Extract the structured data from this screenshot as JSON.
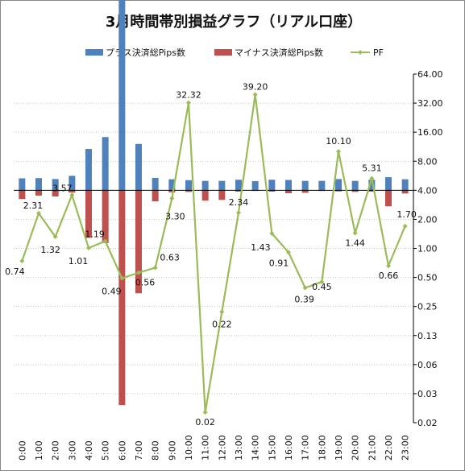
{
  "chart_data": {
    "type": "bar",
    "title": "3月時間帯別損益グラフ（リアル口座）",
    "categories": [
      "0:00",
      "1:00",
      "2:00",
      "3:00",
      "4:00",
      "5:00",
      "6:00",
      "7:00",
      "8:00",
      "9:00",
      "10:00",
      "11:00",
      "12:00",
      "13:00",
      "14:00",
      "15:00",
      "16:00",
      "17:00",
      "18:00",
      "19:00",
      "20:00",
      "21:00",
      "22:00",
      "23:00"
    ],
    "series": [
      {
        "name": "プラス決済総Pips数",
        "type": "bar",
        "color": "#4f81bd",
        "values": [
          5.2,
          5.3,
          4.9,
          6.3,
          18,
          23.2,
          94,
          20.2,
          5.4,
          4.8,
          4.4,
          4.1,
          4.1,
          4.6,
          4.0,
          4.6,
          4.5,
          4.1,
          4.1,
          4.9,
          4.1,
          4.6,
          5.7,
          4.8
        ]
      },
      {
        "name": "マイナス決済総Pips数",
        "type": "bar",
        "color": "#c0504d",
        "values": [
          -3.8,
          -2.3,
          -2.7,
          -1.0,
          -20.7,
          -23.0,
          -93.6,
          -44.9,
          -4.8,
          -0.9,
          -0.7,
          -4.5,
          -4.2,
          -0.6,
          -0.3,
          -0.6,
          -1.3,
          -1.1,
          -0.3,
          -0.5,
          -0.7,
          -0.6,
          -7.0,
          -1.4
        ]
      },
      {
        "name": "PF",
        "type": "line",
        "color": "#9bbb59",
        "values": [
          0.74,
          2.31,
          1.32,
          3.57,
          1.01,
          1.19,
          0.49,
          0.56,
          0.63,
          3.3,
          32.32,
          0.02,
          0.22,
          2.34,
          39.2,
          1.43,
          0.91,
          0.39,
          0.45,
          10.1,
          1.44,
          5.31,
          0.66,
          1.7
        ]
      }
    ],
    "y_right": {
      "scale": "log2",
      "ticks": [
        "0.02",
        "0.03",
        "0.06",
        "0.13",
        "0.25",
        "0.50",
        "1.00",
        "2.00",
        "4.00",
        "8.00",
        "16.00",
        "32.00",
        "64.00"
      ]
    },
    "grid": true,
    "legend": "top"
  }
}
